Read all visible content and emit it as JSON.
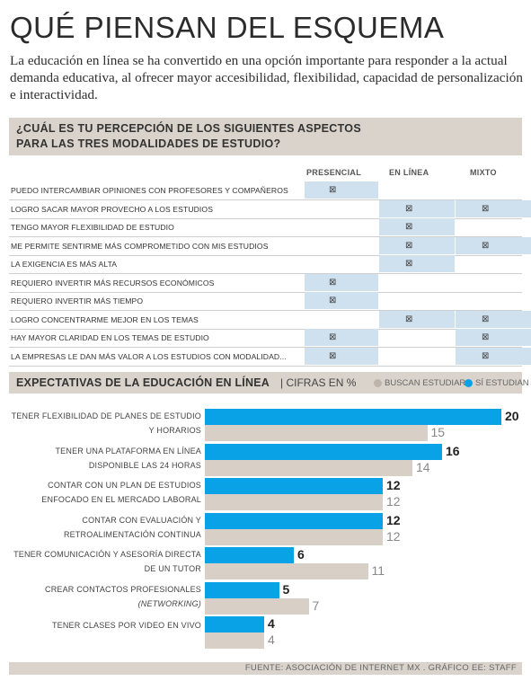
{
  "title": "QUÉ PIENSAN DEL ESQUEMA",
  "subtitle": "La educación en línea se ha convertido en una opción importante para responder a la actual demanda educativa, al ofrecer mayor accesibilidad, flexibilidad, capacidad de personalización e interactividad.",
  "question": {
    "line1": "¿CUÁL ES TU PERCEPCIÓN DE LOS SIGUIENTES ASPECTOS",
    "line2": "PARA LAS TRES MODALIDADES DE ESTUDIO?"
  },
  "columns": [
    "PRESENCIAL",
    "EN LÍNEA",
    "MIXTO"
  ],
  "mark_symbol": "⊠",
  "rows": [
    {
      "label": "PUEDO INTERCAMBIAR OPINIONES CON PROFESORES Y COMPAÑEROS",
      "marks": [
        true,
        false,
        false
      ]
    },
    {
      "label": "LOGRO SACAR MAYOR PROVECHO A LOS ESTUDIOS",
      "marks": [
        false,
        true,
        true
      ]
    },
    {
      "label": "TENGO MAYOR FLEXIBILIDAD DE ESTUDIO",
      "marks": [
        false,
        true,
        false
      ]
    },
    {
      "label": "ME PERMITE SENTIRME MÁS COMPROMETIDO CON MIS ESTUDIOS",
      "marks": [
        false,
        true,
        true
      ]
    },
    {
      "label": "LA EXIGENCIA ES MÁS ALTA",
      "marks": [
        false,
        true,
        false
      ]
    },
    {
      "label": "REQUIERO INVERTIR MÁS RECURSOS ECONÓMICOS",
      "marks": [
        true,
        false,
        false
      ]
    },
    {
      "label": "REQUIERO INVERTIR MÁS TIEMPO",
      "marks": [
        true,
        false,
        false
      ]
    },
    {
      "label": "LOGRO CONCENTRARME MEJOR EN LOS TEMAS",
      "marks": [
        false,
        true,
        true
      ]
    },
    {
      "label": "HAY MAYOR CLARIDAD EN LOS TEMAS DE ESTUDIO",
      "marks": [
        true,
        false,
        true
      ]
    },
    {
      "label": "LA EMPRESAS LE DAN MÁS VALOR A LOS ESTUDIOS CON MODALIDAD...",
      "marks": [
        true,
        false,
        true
      ]
    }
  ],
  "section2": {
    "heading": "EXPECTATIVAS DE LA EDUCACIÓN EN LÍNEA",
    "unit": "CIFRAS EN %"
  },
  "colors": {
    "blue": "#0aa2e6",
    "gray": "#d8d0c7",
    "cell": "#cfe0ee",
    "band": "#d9d3cb"
  },
  "chart_data": {
    "type": "bar",
    "orientation": "horizontal",
    "categories": [
      [
        "TENER FLEXIBILIDAD DE PLANES DE ESTUDIO",
        "Y HORARIOS"
      ],
      [
        "TENER UNA PLATAFORMA EN LÍNEA",
        "DISPONIBLE LAS 24 HORAS"
      ],
      [
        "CONTAR CON UN PLAN DE ESTUDIOS",
        "ENFOCADO EN EL MERCADO LABORAL"
      ],
      [
        "CONTAR CON EVALUACIÓN Y",
        "RETROALIMENTACIÓN CONTINUA"
      ],
      [
        "TENER COMUNICACIÓN Y ASESORÍA DIRECTA",
        "DE UN TUTOR"
      ],
      [
        "CREAR CONTACTOS PROFESIONALES",
        "(NETWORKING)"
      ],
      [
        "TENER CLASES POR VIDEO EN VIVO"
      ]
    ],
    "series": [
      {
        "name": "SÍ ESTUDIAN",
        "values": [
          20,
          16,
          12,
          12,
          6,
          5,
          4
        ]
      },
      {
        "name": "BUSCAN ESTUDIAR",
        "values": [
          15,
          14,
          12,
          12,
          11,
          7,
          4
        ]
      }
    ],
    "legend": [
      "BUSCAN ESTUDIAR",
      "SÍ ESTUDIAN"
    ],
    "legend_position": "top-right",
    "xlim": [
      0,
      20
    ]
  },
  "source": "FUENTE: ASOCIACIÓN DE INTERNET MX . GRÁFICO EE: STAFF"
}
